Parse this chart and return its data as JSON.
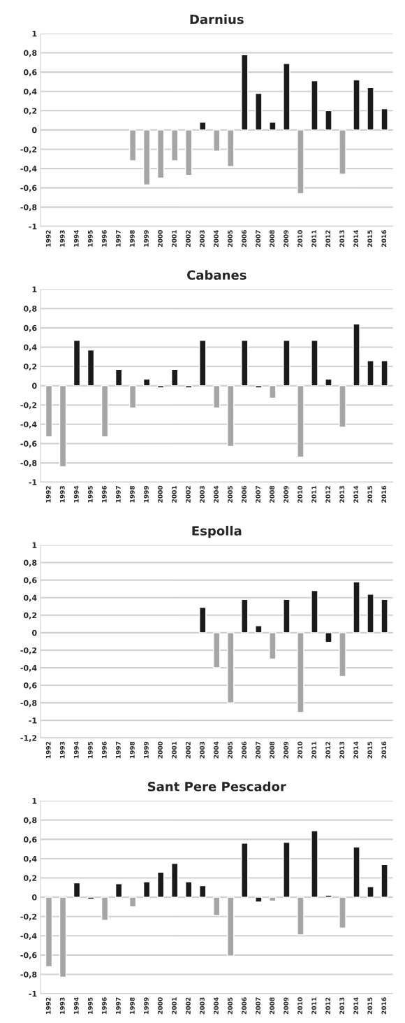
{
  "chart_data": [
    {
      "type": "bar",
      "title": "Darnius",
      "categories": [
        "1992",
        "1993",
        "1994",
        "1995",
        "1996",
        "1997",
        "1998",
        "1999",
        "2000",
        "2001",
        "2002",
        "2003",
        "2004",
        "2005",
        "2006",
        "2007",
        "2008",
        "2009",
        "2010",
        "2011",
        "2012",
        "2013",
        "2014",
        "2015",
        "2016"
      ],
      "values": [
        null,
        null,
        null,
        null,
        null,
        null,
        -0.32,
        -0.57,
        -0.5,
        -0.32,
        -0.47,
        0.08,
        -0.22,
        -0.38,
        0.78,
        0.38,
        0.08,
        0.69,
        -0.66,
        0.51,
        0.2,
        -0.46,
        0.52,
        0.44,
        0.22
      ],
      "colors": [
        "#1a1a1a",
        "#1a1a1a",
        "#1a1a1a",
        "#1a1a1a",
        "#1a1a1a",
        "#1a1a1a",
        "#a6a6a6",
        "#a6a6a6",
        "#a6a6a6",
        "#a6a6a6",
        "#a6a6a6",
        "#1a1a1a",
        "#a6a6a6",
        "#a6a6a6",
        "#1a1a1a",
        "#1a1a1a",
        "#1a1a1a",
        "#1a1a1a",
        "#a6a6a6",
        "#1a1a1a",
        "#1a1a1a",
        "#a6a6a6",
        "#1a1a1a",
        "#1a1a1a",
        "#1a1a1a"
      ],
      "ylim": [
        -1,
        1
      ],
      "yticks": [
        {
          "value": -1,
          "label": "-1"
        },
        {
          "value": -0.8,
          "label": "-0,8"
        },
        {
          "value": -0.6,
          "label": "-0,6"
        },
        {
          "value": -0.4,
          "label": "-0,4"
        },
        {
          "value": -0.2,
          "label": "-0,2"
        },
        {
          "value": 0,
          "label": "0"
        },
        {
          "value": 0.2,
          "label": "0,2"
        },
        {
          "value": 0.4,
          "label": "0,4"
        },
        {
          "value": 0.6,
          "label": "0,6"
        },
        {
          "value": 0.8,
          "label": "0,8"
        },
        {
          "value": 1,
          "label": "1"
        }
      ],
      "grid": "y"
    },
    {
      "type": "bar",
      "title": "Cabanes",
      "categories": [
        "1992",
        "1993",
        "1994",
        "1995",
        "1996",
        "1997",
        "1998",
        "1999",
        "2000",
        "2001",
        "2002",
        "2003",
        "2004",
        "2005",
        "2006",
        "2007",
        "2008",
        "2009",
        "2010",
        "2011",
        "2012",
        "2013",
        "2014",
        "2015",
        "2016"
      ],
      "values": [
        -0.53,
        -0.84,
        0.47,
        0.37,
        -0.53,
        0.17,
        -0.23,
        0.07,
        -0.02,
        0.17,
        -0.02,
        0.47,
        -0.23,
        -0.63,
        0.47,
        -0.02,
        -0.13,
        0.47,
        -0.74,
        0.47,
        0.07,
        -0.43,
        0.64,
        0.26,
        0.26
      ],
      "colors": [
        "#a6a6a6",
        "#a6a6a6",
        "#1a1a1a",
        "#1a1a1a",
        "#a6a6a6",
        "#1a1a1a",
        "#a6a6a6",
        "#1a1a1a",
        "#1a1a1a",
        "#1a1a1a",
        "#1a1a1a",
        "#1a1a1a",
        "#a6a6a6",
        "#a6a6a6",
        "#1a1a1a",
        "#1a1a1a",
        "#a6a6a6",
        "#1a1a1a",
        "#a6a6a6",
        "#1a1a1a",
        "#1a1a1a",
        "#a6a6a6",
        "#1a1a1a",
        "#1a1a1a",
        "#1a1a1a"
      ],
      "ylim": [
        -1,
        1
      ],
      "yticks": [
        {
          "value": -1,
          "label": "-1"
        },
        {
          "value": -0.8,
          "label": "-0,8"
        },
        {
          "value": -0.6,
          "label": "-0,6"
        },
        {
          "value": -0.4,
          "label": "-0,4"
        },
        {
          "value": -0.2,
          "label": "-0,2"
        },
        {
          "value": 0,
          "label": "0"
        },
        {
          "value": 0.2,
          "label": "0,2"
        },
        {
          "value": 0.4,
          "label": "0,4"
        },
        {
          "value": 0.6,
          "label": "0,6"
        },
        {
          "value": 0.8,
          "label": "0,8"
        },
        {
          "value": 1,
          "label": "1"
        }
      ],
      "grid": "y"
    },
    {
      "type": "bar",
      "title": "Espolla",
      "categories": [
        "1992",
        "1993",
        "1994",
        "1995",
        "1996",
        "1997",
        "1998",
        "1999",
        "2000",
        "2001",
        "2002",
        "2003",
        "2004",
        "2005",
        "2006",
        "2007",
        "2008",
        "2009",
        "2010",
        "2011",
        "2012",
        "2013",
        "2014",
        "2015",
        "2016"
      ],
      "values": [
        null,
        null,
        null,
        null,
        null,
        null,
        null,
        null,
        null,
        null,
        null,
        0.29,
        -0.4,
        -0.8,
        0.38,
        0.08,
        -0.3,
        0.38,
        -0.91,
        0.48,
        -0.11,
        -0.5,
        0.58,
        0.44,
        0.38
      ],
      "colors": [
        "#1a1a1a",
        "#1a1a1a",
        "#1a1a1a",
        "#1a1a1a",
        "#1a1a1a",
        "#1a1a1a",
        "#1a1a1a",
        "#1a1a1a",
        "#1a1a1a",
        "#1a1a1a",
        "#1a1a1a",
        "#1a1a1a",
        "#a6a6a6",
        "#a6a6a6",
        "#1a1a1a",
        "#1a1a1a",
        "#a6a6a6",
        "#1a1a1a",
        "#a6a6a6",
        "#1a1a1a",
        "#1a1a1a",
        "#a6a6a6",
        "#1a1a1a",
        "#1a1a1a",
        "#1a1a1a"
      ],
      "ylim": [
        -1.2,
        1
      ],
      "yticks": [
        {
          "value": -1.2,
          "label": "-1,2"
        },
        {
          "value": -1,
          "label": "-1"
        },
        {
          "value": -0.8,
          "label": "-0,8"
        },
        {
          "value": -0.6,
          "label": "0,6"
        },
        {
          "value": -0.4,
          "label": "-0,4"
        },
        {
          "value": -0.2,
          "label": "-0,2"
        },
        {
          "value": 0,
          "label": "0"
        },
        {
          "value": 0.2,
          "label": "0,2"
        },
        {
          "value": 0.4,
          "label": "0,4"
        },
        {
          "value": 0.6,
          "label": "0,6"
        },
        {
          "value": 0.8,
          "label": "0,8"
        },
        {
          "value": 1,
          "label": "1"
        }
      ],
      "grid": "y"
    },
    {
      "type": "bar",
      "title": "Sant Pere Pescador",
      "categories": [
        "1992",
        "1993",
        "1994",
        "1995",
        "1996",
        "1997",
        "1998",
        "1999",
        "2000",
        "2001",
        "2002",
        "2003",
        "2004",
        "2005",
        "2006",
        "2007",
        "2008",
        "2009",
        "2010",
        "2011",
        "2012",
        "2013",
        "2014",
        "2015",
        "2016"
      ],
      "values": [
        -0.72,
        -0.83,
        0.15,
        -0.02,
        -0.24,
        0.14,
        -0.1,
        0.16,
        0.26,
        0.35,
        0.16,
        0.12,
        -0.19,
        -0.61,
        0.56,
        -0.05,
        -0.04,
        0.57,
        -0.39,
        0.69,
        0.02,
        -0.32,
        0.52,
        0.11,
        0.34
      ],
      "colors": [
        "#a6a6a6",
        "#a6a6a6",
        "#1a1a1a",
        "#1a1a1a",
        "#a6a6a6",
        "#1a1a1a",
        "#a6a6a6",
        "#1a1a1a",
        "#1a1a1a",
        "#1a1a1a",
        "#1a1a1a",
        "#1a1a1a",
        "#a6a6a6",
        "#a6a6a6",
        "#1a1a1a",
        "#1a1a1a",
        "#a6a6a6",
        "#1a1a1a",
        "#a6a6a6",
        "#1a1a1a",
        "#1a1a1a",
        "#a6a6a6",
        "#1a1a1a",
        "#1a1a1a",
        "#1a1a1a"
      ],
      "ylim": [
        -1,
        1
      ],
      "yticks": [
        {
          "value": -1,
          "label": "-1"
        },
        {
          "value": -0.8,
          "label": "-0,8"
        },
        {
          "value": -0.6,
          "label": "-0,6"
        },
        {
          "value": -0.4,
          "label": "-0,4"
        },
        {
          "value": -0.2,
          "label": "-0,2"
        },
        {
          "value": 0,
          "label": "0"
        },
        {
          "value": 0.2,
          "label": "0,2"
        },
        {
          "value": 0.4,
          "label": "0,4"
        },
        {
          "value": 0.6,
          "label": "0,6"
        },
        {
          "value": 0.8,
          "label": "0,8"
        },
        {
          "value": 1,
          "label": "1"
        }
      ],
      "grid": "y"
    }
  ]
}
